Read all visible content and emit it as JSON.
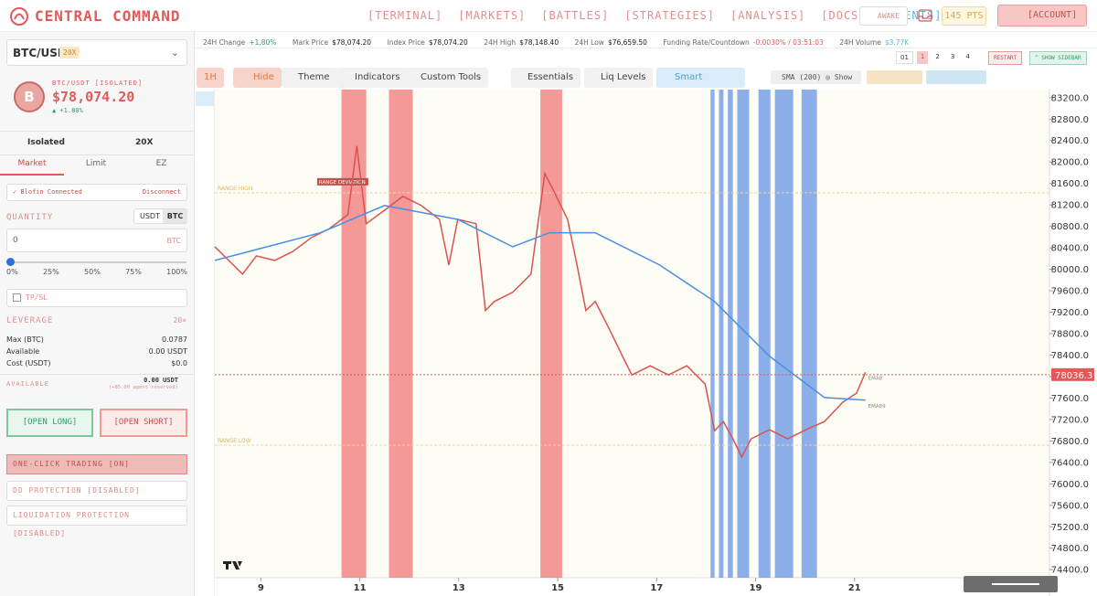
{
  "header": {
    "logo": "CENTRAL COMMAND",
    "nav": [
      "[TERMINAL]",
      "[MARKETS]",
      "[BATTLES]",
      "[STRATEGIES]",
      "[ANALYSIS]",
      "[DOCS]",
      "[AGENTS]"
    ],
    "awake": "AWAKE",
    "points": "145 PTS",
    "account": "[ACCOUNT]"
  },
  "sidebar": {
    "pair": "BTC/USD",
    "pair_leverage": "20X",
    "market_name": "BTC/USDT [ISOLATED]",
    "price": "$78,074.20",
    "change": "▲ +1.80%",
    "avatar": "B",
    "margin_mode": "Isolated",
    "leverage_select": "20X",
    "tabs": [
      "Market",
      "Limit",
      "EZ"
    ],
    "connection": "✓ Blofin Connected",
    "disconnect": "Disconnect",
    "quantity_label": "QUANTITY",
    "units": [
      "USDT",
      "BTC"
    ],
    "quantity": "0",
    "quantity_unit": "BTC",
    "percents": [
      "0%",
      "25%",
      "50%",
      "75%",
      "100%"
    ],
    "tpsl": "TP/SL",
    "leverage_label": "LEVERAGE",
    "leverage": "20×",
    "info": [
      {
        "label": "Max (BTC)",
        "value": "0.0787"
      },
      {
        "label": "Available",
        "value": "0.00 USDT"
      },
      {
        "label": "Cost (USDT)",
        "value": "$0.0"
      }
    ],
    "available_label": "AVAILABLE",
    "available": "0.00 USDT",
    "reserved": "(+85.00 agent reserved)",
    "open_long": "[OPEN LONG]",
    "open_short": "[OPEN SHORT]",
    "toggles": [
      "ONE-CLICK TRADING [ON]",
      "DD PROTECTION [DISABLED]",
      "LIQUIDATION PROTECTION [DISABLED]"
    ]
  },
  "stats": [
    {
      "label": "24H Change",
      "value": "+1.80%"
    },
    {
      "label": "Mark Price",
      "value": "$78,074.20"
    },
    {
      "label": "Index Price",
      "value": "$78,074.20"
    },
    {
      "label": "24H High",
      "value": "$78,148.40"
    },
    {
      "label": "24H Low",
      "value": "$76,659.50"
    },
    {
      "label": "Funding Rate/Countdown",
      "value": "-0.0030% / 03:51:03"
    },
    {
      "label": "24H Volume",
      "value": "$3.77K"
    }
  ],
  "layouts": [
    "01",
    "1",
    "2",
    "3",
    "4"
  ],
  "restart": "RESTART",
  "show_sidebar": "^ SHOW SIDEBAR",
  "toolbar": [
    "1H",
    "Hide",
    "Theme",
    "Indicators",
    "Custom Tools",
    "Essentials",
    "Liq Levels",
    "Smart Overlays"
  ],
  "indicator": {
    "name": "SMA (200)",
    "action": "Show"
  },
  "chart_data": {
    "type": "line",
    "xlim": [
      8.07,
      24.94
    ],
    "xticks": [
      9,
      11,
      13,
      15,
      17,
      19,
      21
    ],
    "ylim": [
      74250,
      83350
    ],
    "yticks": [
      {
        "value": 83200,
        "label": "83200.0"
      },
      {
        "value": 82800,
        "label": "82800.0"
      },
      {
        "value": 82400,
        "label": "82400.0"
      },
      {
        "value": 82000,
        "label": "82000.0"
      },
      {
        "value": 81600,
        "label": "81600.0"
      },
      {
        "value": 81200,
        "label": "81200.0"
      },
      {
        "value": 80800,
        "label": "80800.0"
      },
      {
        "value": 80400,
        "label": "80400.0"
      },
      {
        "value": 80000,
        "label": "80000.0"
      },
      {
        "value": 79600,
        "label": "79600.0"
      },
      {
        "value": 79200,
        "label": "79200.0"
      },
      {
        "value": 78800,
        "label": "78800.0"
      },
      {
        "value": 78400,
        "label": "78400.0"
      },
      {
        "value": 78000,
        "label": "78000.0"
      },
      {
        "value": 77600,
        "label": "77600.0"
      },
      {
        "value": 77200,
        "label": "77200.0"
      },
      {
        "value": 76800,
        "label": "76800.0"
      },
      {
        "value": 76400,
        "label": "76400.0"
      },
      {
        "value": 76000,
        "label": "76000.0"
      },
      {
        "value": 75600,
        "label": "75600.0"
      },
      {
        "value": 75200,
        "label": "75200.0"
      },
      {
        "value": 74800,
        "label": "74800.0"
      },
      {
        "value": 74400,
        "label": "74400.0"
      }
    ],
    "grid": false,
    "series": [
      {
        "name": "EMA8",
        "color": "#d9534f",
        "x": [
          8.07,
          8.35,
          8.63,
          8.91,
          9.28,
          9.65,
          10.02,
          10.39,
          10.76,
          10.94,
          11.13,
          11.5,
          11.87,
          12.24,
          12.61,
          12.8,
          12.98,
          13.35,
          13.54,
          13.72,
          14.09,
          14.46,
          14.74,
          14.93,
          15.2,
          15.39,
          15.57,
          15.76,
          16.04,
          16.31,
          16.5,
          16.87,
          17.24,
          17.61,
          17.98,
          18.17,
          18.35,
          18.54,
          18.72,
          18.91,
          19.28,
          19.65,
          20.02,
          20.39,
          20.76,
          21.04,
          21.22
        ],
        "values": [
          80420,
          80165,
          79910,
          80250,
          80165,
          80335,
          80590,
          80760,
          81020,
          82300,
          80850,
          81100,
          81360,
          81190,
          80930,
          80080,
          80930,
          80850,
          79230,
          79400,
          79570,
          79910,
          81785,
          81440,
          80930,
          80080,
          79230,
          79400,
          78890,
          78380,
          78030,
          78200,
          78030,
          78200,
          77860,
          76990,
          77160,
          76840,
          76500,
          76840,
          77010,
          76840,
          77010,
          77160,
          77520,
          77690,
          78080
        ]
      },
      {
        "name": "EMA89",
        "color": "#4a90e2",
        "x": [
          8.07,
          10.2,
          11.5,
          12.98,
          14.09,
          14.83,
          15.76,
          17.06,
          18.17,
          19.28,
          20.39,
          21.22
        ],
        "values": [
          80165,
          80680,
          81190,
          80930,
          80420,
          80680,
          80680,
          80080,
          79400,
          78380,
          77610,
          77560
        ]
      }
    ],
    "highlight_zones": [
      {
        "start": 10.63,
        "end": 11.13,
        "color": "#ef6f6f"
      },
      {
        "start": 11.59,
        "end": 12.07,
        "color": "#ef6f6f"
      },
      {
        "start": 14.65,
        "end": 15.09,
        "color": "#ef6f6f"
      },
      {
        "start": 18.09,
        "end": 18.17,
        "color": "#5b8fe6"
      },
      {
        "start": 18.26,
        "end": 18.35,
        "color": "#5b8fe6"
      },
      {
        "start": 18.44,
        "end": 18.54,
        "color": "#5b8fe6"
      },
      {
        "start": 18.63,
        "end": 18.87,
        "color": "#5b8fe6"
      },
      {
        "start": 19.06,
        "end": 19.3,
        "color": "#5b8fe6"
      },
      {
        "start": 19.39,
        "end": 19.76,
        "color": "#5b8fe6"
      },
      {
        "start": 19.93,
        "end": 20.24,
        "color": "#5b8fe6"
      }
    ],
    "reference_lines": [
      {
        "label": "RANGE HIGH",
        "value": 81427
      },
      {
        "label": "RANGE LOW",
        "value": 76721
      }
    ],
    "deviation_label": "RANGE DEVIATION",
    "last_price": 78036.3
  }
}
